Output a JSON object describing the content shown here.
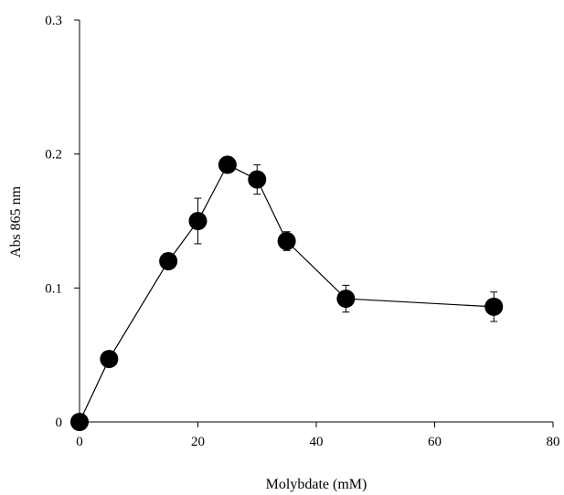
{
  "chart_data": {
    "type": "scatter",
    "title": "",
    "xlabel": "Molybdate (mM)",
    "ylabel": "Abs 865 nm",
    "xlim": [
      0,
      80
    ],
    "ylim": [
      0,
      0.3
    ],
    "xticks": [
      0,
      20,
      40,
      60,
      80
    ],
    "xtick_labels": [
      "0",
      "20",
      "40",
      "60",
      "80"
    ],
    "yticks": [
      0,
      0.1,
      0.2,
      0.3
    ],
    "ytick_labels": [
      "0",
      "0.1",
      "0.2",
      "0.3"
    ],
    "grid": false,
    "marker_color": "#000000",
    "series": [
      {
        "points": [
          {
            "x": 0,
            "y": 0.0,
            "err": 0
          },
          {
            "x": 5,
            "y": 0.047,
            "err": 0
          },
          {
            "x": 15,
            "y": 0.12,
            "err": 0
          },
          {
            "x": 20,
            "y": 0.15,
            "err": 0.017
          },
          {
            "x": 25,
            "y": 0.192,
            "err": 0
          },
          {
            "x": 30,
            "y": 0.181,
            "err": 0.011
          },
          {
            "x": 35,
            "y": 0.135,
            "err": 0.007
          },
          {
            "x": 45,
            "y": 0.092,
            "err": 0.01
          },
          {
            "x": 70,
            "y": 0.086,
            "err": 0.011
          }
        ]
      }
    ]
  }
}
